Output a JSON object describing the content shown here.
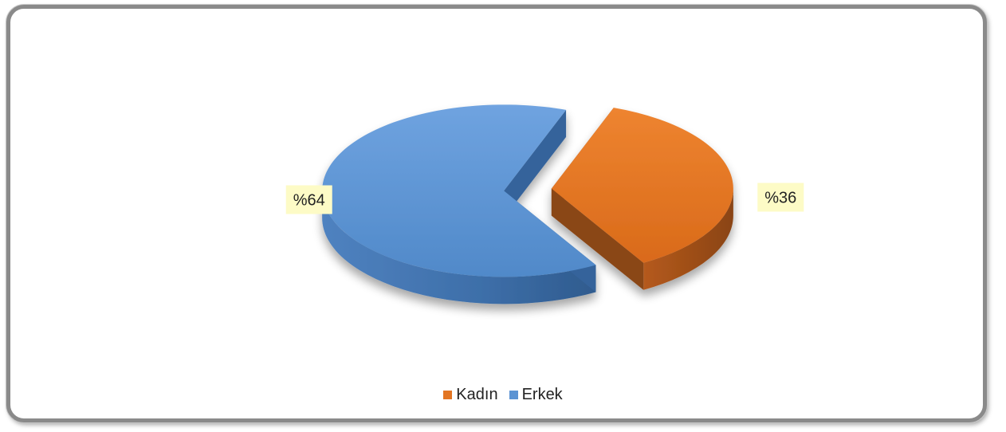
{
  "chart_data": {
    "type": "pie",
    "style": "3d-exploded",
    "title": "",
    "slices": [
      {
        "label": "Kadın",
        "value": 36,
        "display": "%36",
        "color": "#e37522",
        "side_color": "#8a4618"
      },
      {
        "label": "Erkek",
        "value": 64,
        "display": "%64",
        "color": "#5b93d3",
        "side_color": "#36649b"
      }
    ],
    "legend": {
      "placement": "bottom"
    }
  }
}
